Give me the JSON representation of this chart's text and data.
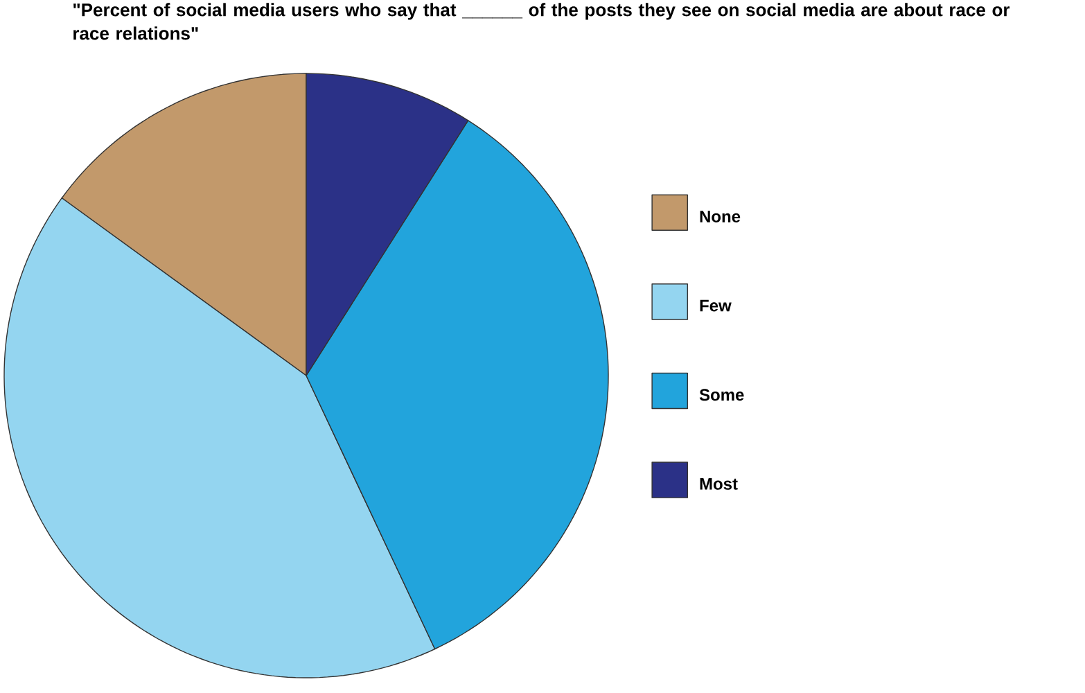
{
  "chart_data": {
    "type": "pie",
    "title": "\"Percent of social media users who say that ______ of the posts they see on social media are about race or race relations\"",
    "categories": [
      "None",
      "Few",
      "Some",
      "Most"
    ],
    "values": [
      15,
      42,
      34,
      9
    ],
    "colors": [
      "#c2996b",
      "#94d5f0",
      "#22a4dc",
      "#2b3187"
    ],
    "legend": "right"
  }
}
